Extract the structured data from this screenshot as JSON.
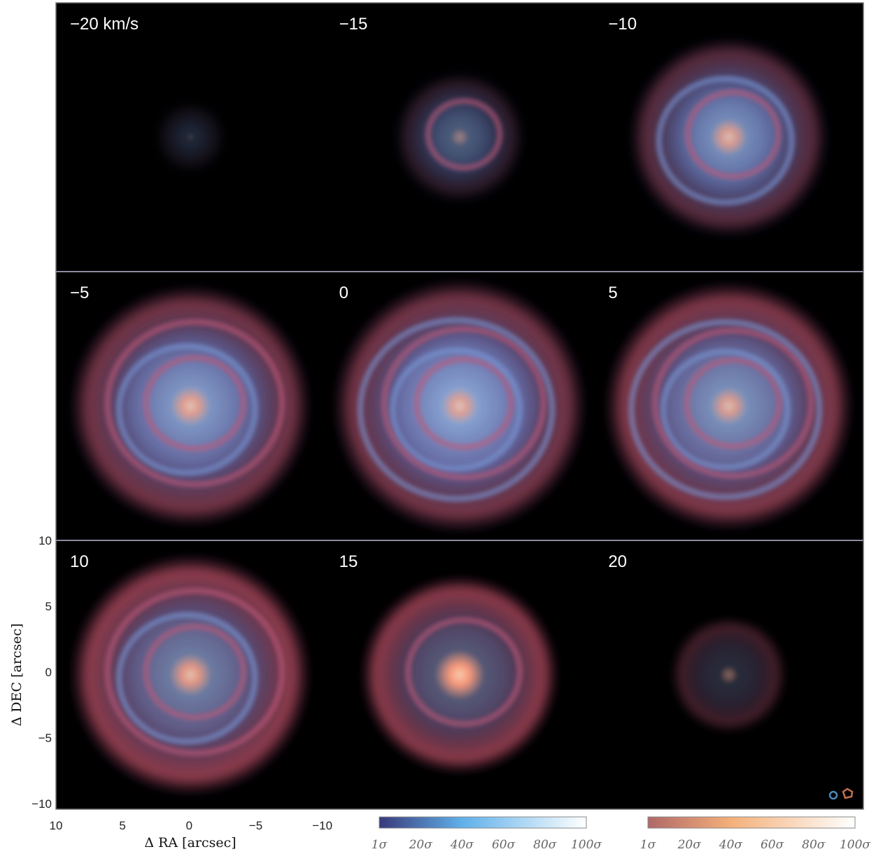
{
  "panels": [
    {
      "label": "−20 km/s",
      "velocity": -20,
      "blue": 0.28,
      "red": 0.1,
      "core": 0.15,
      "extent": 0.25,
      "rings": 0
    },
    {
      "label": "−15",
      "velocity": -15,
      "blue": 0.55,
      "red": 0.25,
      "core": 0.35,
      "extent": 0.5,
      "rings": 1
    },
    {
      "label": "−10",
      "velocity": -10,
      "blue": 0.85,
      "red": 0.55,
      "core": 0.7,
      "extent": 0.78,
      "rings": 2
    },
    {
      "label": "−5",
      "velocity": -5,
      "blue": 0.9,
      "red": 0.75,
      "core": 0.75,
      "extent": 0.95,
      "rings": 3
    },
    {
      "label": "0",
      "velocity": 0,
      "blue": 0.95,
      "red": 0.75,
      "core": 0.7,
      "extent": 1.0,
      "rings": 4
    },
    {
      "label": "5",
      "velocity": 5,
      "blue": 0.85,
      "red": 0.85,
      "core": 0.7,
      "extent": 0.98,
      "rings": 4
    },
    {
      "label": "10",
      "velocity": 10,
      "blue": 0.75,
      "red": 0.95,
      "core": 0.8,
      "extent": 0.95,
      "rings": 3
    },
    {
      "label": "15",
      "velocity": 15,
      "blue": 0.55,
      "red": 0.95,
      "core": 0.95,
      "extent": 0.78,
      "rings": 1
    },
    {
      "label": "20",
      "velocity": 20,
      "blue": 0.25,
      "red": 0.45,
      "core": 0.35,
      "extent": 0.45,
      "rings": 0
    }
  ],
  "axes": {
    "xlabel": "Δ RA [arcsec]",
    "ylabel": "Δ DEC [arcsec]",
    "xticks": [
      "10",
      "5",
      "0",
      "−5",
      "−10"
    ],
    "yticks": [
      "10",
      "5",
      "0",
      "−5",
      "−10"
    ],
    "xrange": [
      10,
      -10
    ],
    "yrange": [
      -10,
      10
    ]
  },
  "colorbars": [
    {
      "name": "blue",
      "labels": [
        "1σ",
        "20σ",
        "40σ",
        "60σ",
        "80σ",
        "100σ"
      ],
      "from": "#3a3a7a",
      "mid": "#5fb0ea",
      "to": "#ffffff"
    },
    {
      "name": "red",
      "labels": [
        "1σ",
        "20σ",
        "40σ",
        "60σ",
        "80σ",
        "100σ"
      ],
      "from": "#b06868",
      "mid": "#f4b07a",
      "to": "#ffffff"
    }
  ],
  "colors": {
    "blue": "#5a8ee0",
    "red": "#b24a5a",
    "core": "#ff9a7a"
  },
  "beam_icons": [
    "blue-beam-icon",
    "red-beam-icon"
  ]
}
